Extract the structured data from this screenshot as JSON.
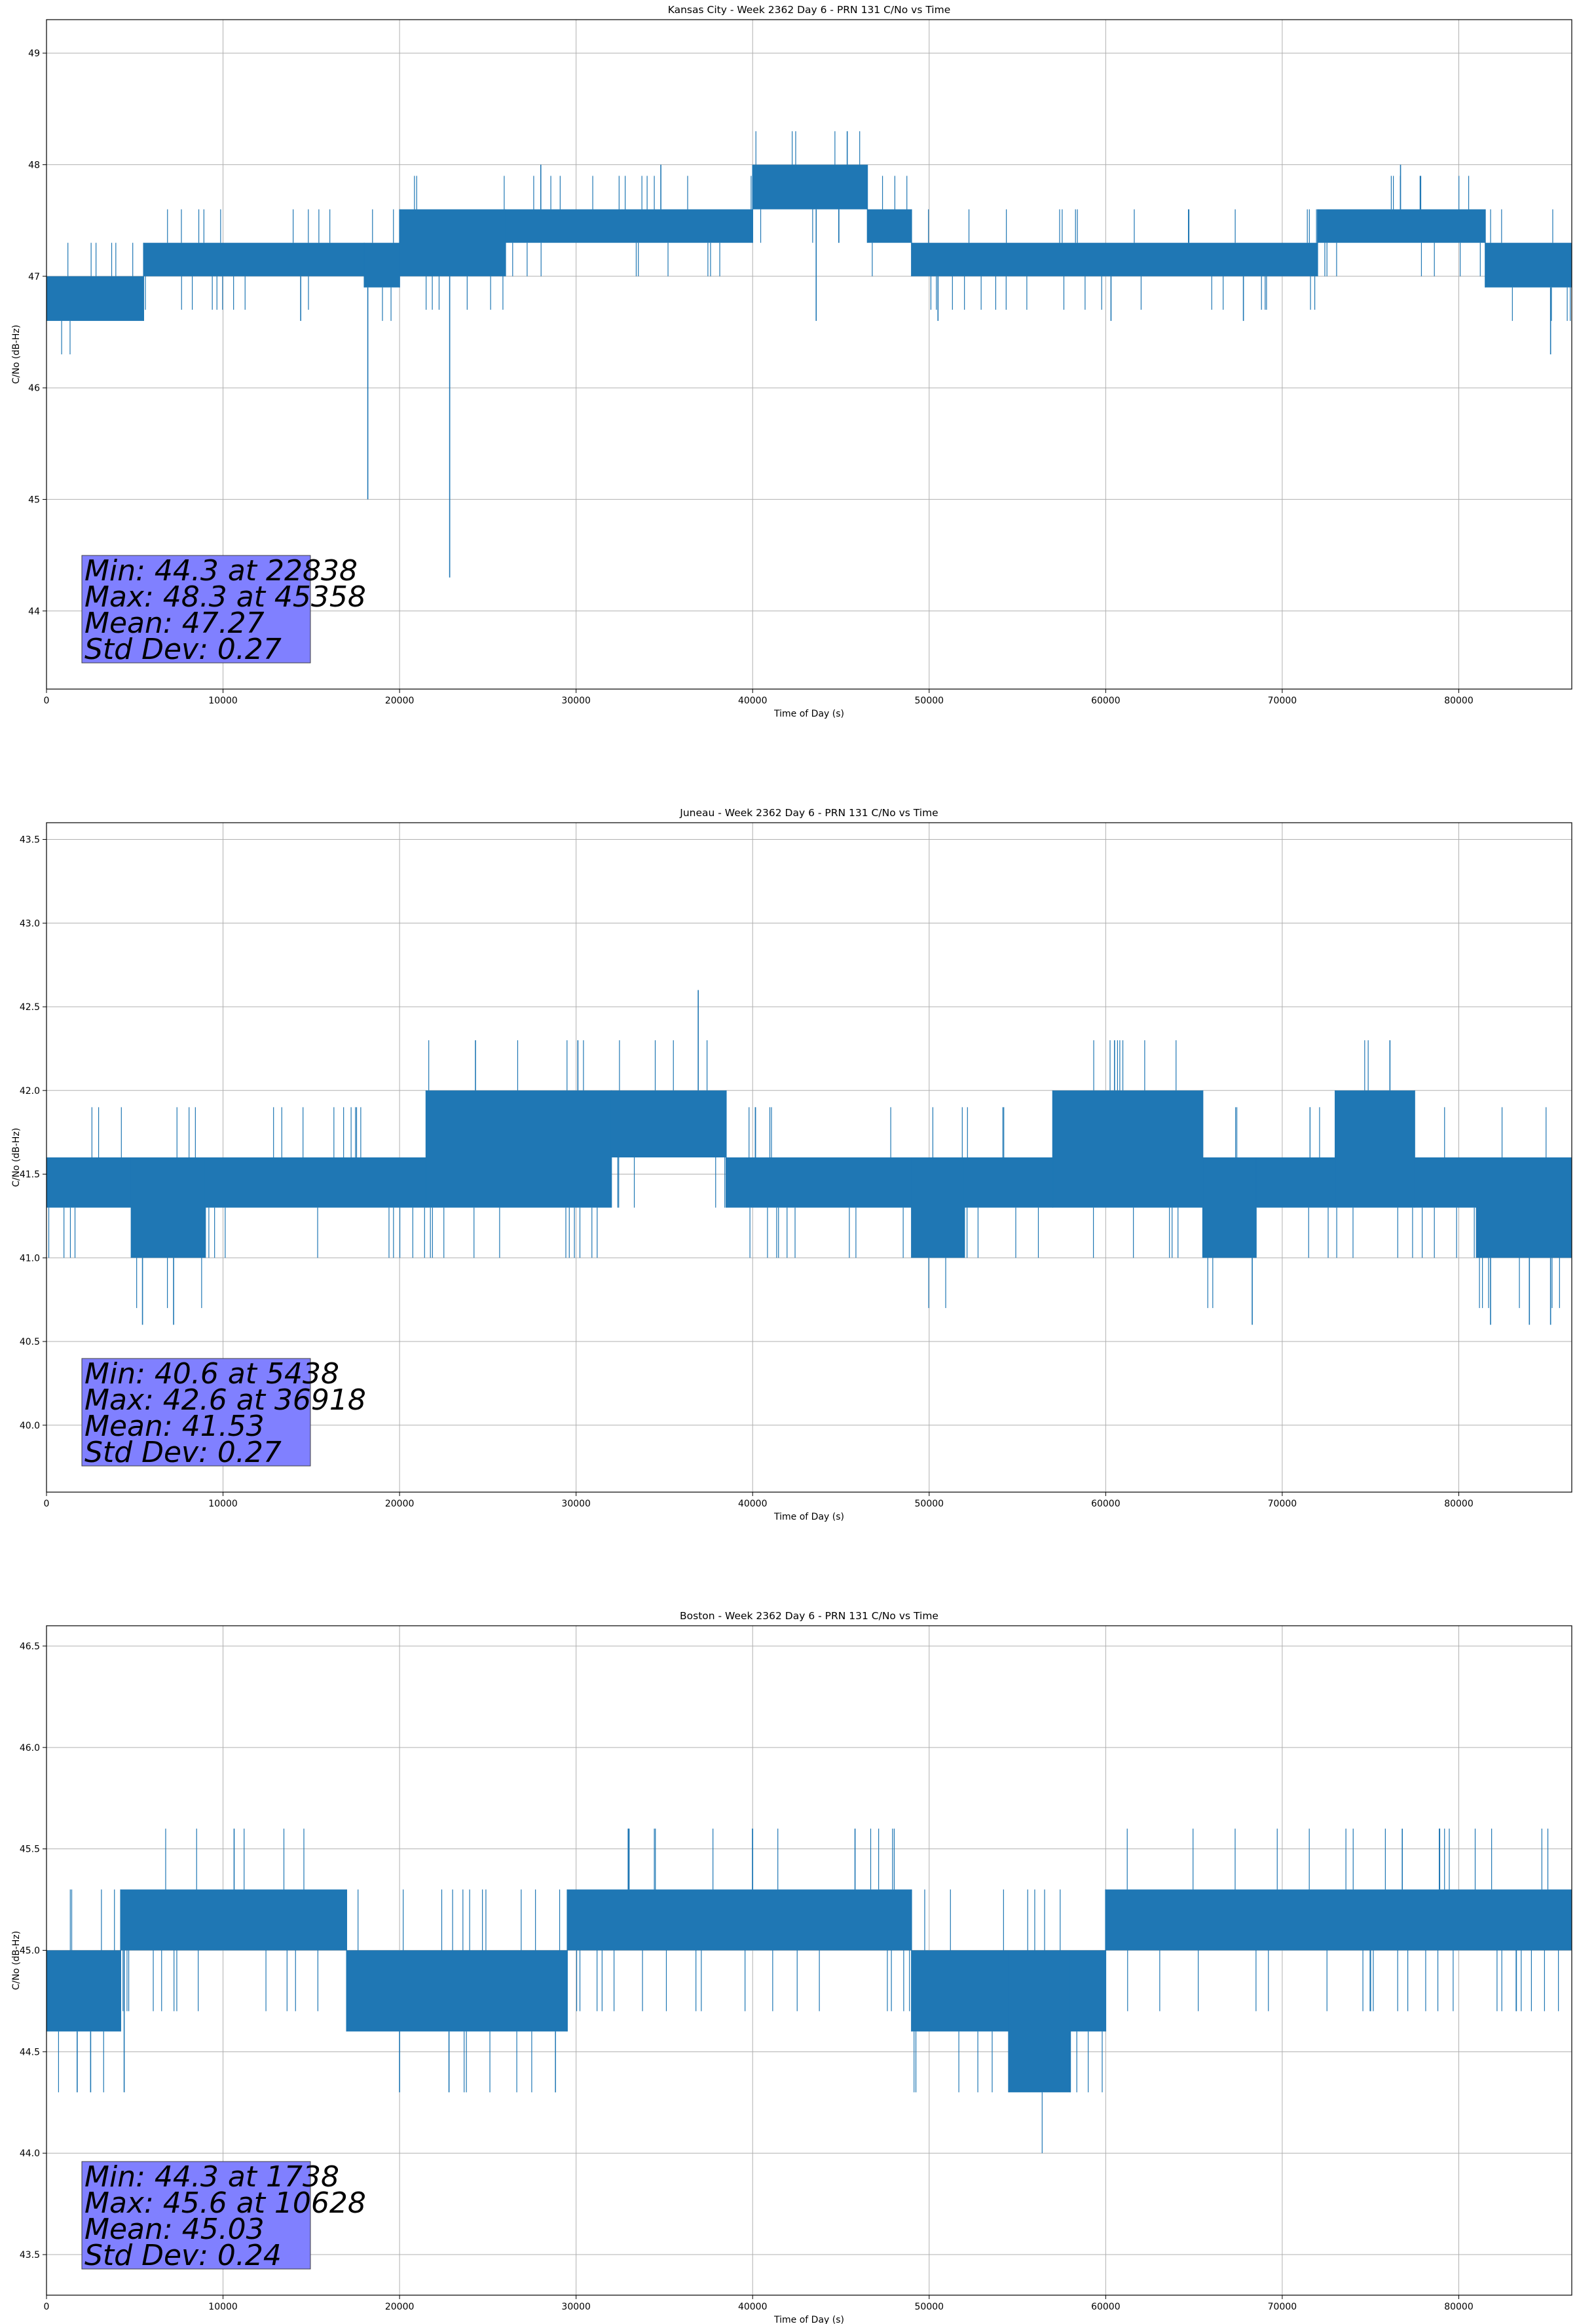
{
  "chart_data": [
    {
      "type": "line",
      "title": "Kansas City - Week 2362 Day 6 - PRN 131 C/No vs Time",
      "xlabel": "Time of Day (s)",
      "ylabel": "C/No (dB-Hz)",
      "xlim": [
        0,
        86400
      ],
      "ylim": [
        43.3,
        49.3
      ],
      "grid": true,
      "line_color": "#1f77b4",
      "stats_box_color": "#8080ff",
      "x_ticks": [
        0,
        10000,
        20000,
        30000,
        40000,
        50000,
        60000,
        70000,
        80000
      ],
      "y_ticks": [
        44,
        45,
        46,
        47,
        48,
        49
      ],
      "y_tick_labels": [
        "44",
        "45",
        "46",
        "47",
        "48",
        "49"
      ],
      "band_segments": [
        {
          "x": [
            0,
            5500
          ],
          "y": [
            46.6,
            47.0
          ]
        },
        {
          "x": [
            5500,
            18000
          ],
          "y": [
            47.0,
            47.3
          ]
        },
        {
          "x": [
            18000,
            20000
          ],
          "y": [
            46.9,
            47.3
          ]
        },
        {
          "x": [
            20000,
            26000
          ],
          "y": [
            47.0,
            47.6
          ]
        },
        {
          "x": [
            26000,
            40000
          ],
          "y": [
            47.3,
            47.6
          ]
        },
        {
          "x": [
            40000,
            46500
          ],
          "y": [
            47.6,
            48.0
          ]
        },
        {
          "x": [
            46500,
            49000
          ],
          "y": [
            47.3,
            47.6
          ]
        },
        {
          "x": [
            49000,
            72000
          ],
          "y": [
            47.0,
            47.3
          ]
        },
        {
          "x": [
            72000,
            81500
          ],
          "y": [
            47.3,
            47.6
          ]
        },
        {
          "x": [
            81500,
            86400
          ],
          "y": [
            46.9,
            47.3
          ]
        }
      ],
      "spikes": [
        {
          "x": 18200,
          "y": 45.0
        },
        {
          "x": 22838,
          "y": 44.3
        },
        {
          "x": 14400,
          "y": 46.6
        },
        {
          "x": 34800,
          "y": 48.0
        },
        {
          "x": 28000,
          "y": 48.0
        },
        {
          "x": 45358,
          "y": 48.3
        },
        {
          "x": 43600,
          "y": 46.6
        },
        {
          "x": 76700,
          "y": 48.0
        },
        {
          "x": 67800,
          "y": 46.6
        },
        {
          "x": 85200,
          "y": 46.3
        },
        {
          "x": 50500,
          "y": 46.6
        },
        {
          "x": 60300,
          "y": 46.6
        }
      ],
      "stats": [
        "Min: 44.3 at 22838",
        "Max: 48.3 at 45358",
        "Mean: 47.27",
        "Std Dev: 0.27"
      ]
    },
    {
      "type": "line",
      "title": "Juneau - Week 2362 Day 6 - PRN 131 C/No vs Time",
      "xlabel": "Time of Day (s)",
      "ylabel": "C/No (dB-Hz)",
      "xlim": [
        0,
        86400
      ],
      "ylim": [
        39.6,
        43.6
      ],
      "grid": true,
      "line_color": "#1f77b4",
      "stats_box_color": "#8080ff",
      "x_ticks": [
        0,
        10000,
        20000,
        30000,
        40000,
        50000,
        60000,
        70000,
        80000
      ],
      "y_ticks": [
        40.0,
        40.5,
        41.0,
        41.5,
        42.0,
        42.5,
        43.0,
        43.5
      ],
      "y_tick_labels": [
        "40.0",
        "40.5",
        "41.0",
        "41.5",
        "42.0",
        "42.5",
        "43.0",
        "43.5"
      ],
      "band_segments": [
        {
          "x": [
            0,
            4800
          ],
          "y": [
            41.3,
            41.6
          ]
        },
        {
          "x": [
            4800,
            9000
          ],
          "y": [
            41.0,
            41.6
          ]
        },
        {
          "x": [
            9000,
            21500
          ],
          "y": [
            41.3,
            41.6
          ]
        },
        {
          "x": [
            21500,
            32000
          ],
          "y": [
            41.3,
            42.0
          ]
        },
        {
          "x": [
            32000,
            38500
          ],
          "y": [
            41.6,
            42.0
          ]
        },
        {
          "x": [
            38500,
            49000
          ],
          "y": [
            41.3,
            41.6
          ]
        },
        {
          "x": [
            49000,
            52000
          ],
          "y": [
            41.0,
            41.6
          ]
        },
        {
          "x": [
            52000,
            57000
          ],
          "y": [
            41.3,
            41.6
          ]
        },
        {
          "x": [
            57000,
            65500
          ],
          "y": [
            41.3,
            42.0
          ]
        },
        {
          "x": [
            65500,
            68500
          ],
          "y": [
            41.0,
            41.6
          ]
        },
        {
          "x": [
            68500,
            73000
          ],
          "y": [
            41.3,
            41.6
          ]
        },
        {
          "x": [
            73000,
            77500
          ],
          "y": [
            41.3,
            42.0
          ]
        },
        {
          "x": [
            77500,
            81000
          ],
          "y": [
            41.3,
            41.6
          ]
        },
        {
          "x": [
            81000,
            86400
          ],
          "y": [
            41.0,
            41.6
          ]
        }
      ],
      "spikes": [
        {
          "x": 5438,
          "y": 40.6
        },
        {
          "x": 7200,
          "y": 40.6
        },
        {
          "x": 36918,
          "y": 42.6
        },
        {
          "x": 24300,
          "y": 42.3
        },
        {
          "x": 30100,
          "y": 42.3
        },
        {
          "x": 68300,
          "y": 40.6
        },
        {
          "x": 76100,
          "y": 42.3
        },
        {
          "x": 81800,
          "y": 40.6
        },
        {
          "x": 84000,
          "y": 40.6
        },
        {
          "x": 85200,
          "y": 40.6
        },
        {
          "x": 60500,
          "y": 42.3
        }
      ],
      "stats": [
        "Min: 40.6 at 5438",
        "Max: 42.6 at 36918",
        "Mean: 41.53",
        "Std Dev: 0.27"
      ]
    },
    {
      "type": "line",
      "title": "Boston - Week 2362 Day 6 - PRN 131 C/No vs Time",
      "xlabel": "Time of Day (s)",
      "ylabel": "C/No (dB-Hz)",
      "xlim": [
        0,
        86400
      ],
      "ylim": [
        43.3,
        46.6
      ],
      "grid": true,
      "line_color": "#1f77b4",
      "stats_box_color": "#8080ff",
      "x_ticks": [
        0,
        10000,
        20000,
        30000,
        40000,
        50000,
        60000,
        70000,
        80000
      ],
      "y_ticks": [
        43.5,
        44.0,
        44.5,
        45.0,
        45.5,
        46.0,
        46.5
      ],
      "y_tick_labels": [
        "43.5",
        "44.0",
        "44.5",
        "45.0",
        "45.5",
        "46.0",
        "46.5"
      ],
      "band_segments": [
        {
          "x": [
            0,
            4200
          ],
          "y": [
            44.6,
            45.0
          ]
        },
        {
          "x": [
            4200,
            17000
          ],
          "y": [
            45.0,
            45.3
          ]
        },
        {
          "x": [
            17000,
            29500
          ],
          "y": [
            44.6,
            45.0
          ]
        },
        {
          "x": [
            29500,
            49000
          ],
          "y": [
            45.0,
            45.3
          ]
        },
        {
          "x": [
            49000,
            54500
          ],
          "y": [
            44.6,
            45.0
          ]
        },
        {
          "x": [
            54500,
            58000
          ],
          "y": [
            44.3,
            45.0
          ]
        },
        {
          "x": [
            58000,
            60000
          ],
          "y": [
            44.6,
            45.0
          ]
        },
        {
          "x": [
            60000,
            86400
          ],
          "y": [
            45.0,
            45.3
          ]
        }
      ],
      "spikes": [
        {
          "x": 1738,
          "y": 44.3
        },
        {
          "x": 2500,
          "y": 44.3
        },
        {
          "x": 4400,
          "y": 44.3
        },
        {
          "x": 10628,
          "y": 45.6
        },
        {
          "x": 20000,
          "y": 44.3
        },
        {
          "x": 22800,
          "y": 44.3
        },
        {
          "x": 33000,
          "y": 45.6
        },
        {
          "x": 40000,
          "y": 45.6
        },
        {
          "x": 45800,
          "y": 45.6
        },
        {
          "x": 76800,
          "y": 45.6
        },
        {
          "x": 78900,
          "y": 45.6
        }
      ],
      "stats": [
        "Min: 44.3 at 1738",
        "Max: 45.6 at 10628",
        "Mean: 45.03",
        "Std Dev: 0.24"
      ]
    }
  ]
}
